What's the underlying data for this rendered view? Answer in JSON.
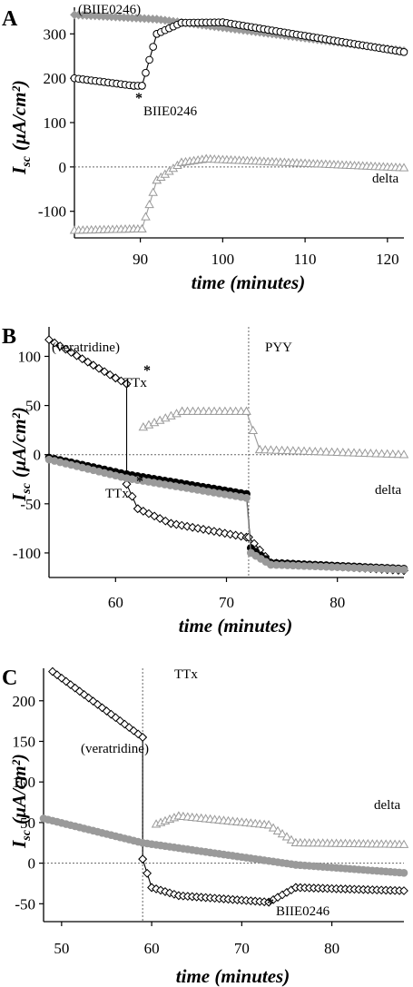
{
  "chart_data": [
    {
      "panel": "A",
      "type": "scatter",
      "xlabel": "time  (minutes)",
      "ylabel_main": "I",
      "ylabel_sub": "sc",
      "ylabel_units": "(µA/cm²)",
      "xlim": [
        82,
        122
      ],
      "ylim": [
        -160,
        360
      ],
      "xticks": [
        90,
        100,
        110,
        120
      ],
      "yticks": [
        -100,
        0,
        100,
        200,
        300
      ],
      "annotations": {
        "control": "(BIIE0246)",
        "drug": "BIIE0246",
        "delta": "delta",
        "star": "*"
      },
      "series": [
        {
          "marker": "diamond",
          "color": "#9a9a9a",
          "filled": true,
          "segments": [
            {
              "x0": 82,
              "x1": 92,
              "y0": 343,
              "y1": 333
            },
            {
              "x0": 92,
              "x1": 122,
              "y0": 333,
              "y1": 262
            }
          ]
        },
        {
          "marker": "circle",
          "color": "#000000",
          "filled": false,
          "segments": [
            {
              "x0": 82,
              "x1": 89.2,
              "y0": 200,
              "y1": 183
            },
            {
              "x0": 89.2,
              "x1": 90.2,
              "y0": 183,
              "y1": 183
            },
            {
              "x0": 90.2,
              "x1": 92,
              "y0": 183,
              "y1": 300
            },
            {
              "x0": 92,
              "x1": 95,
              "y0": 300,
              "y1": 325
            },
            {
              "x0": 95,
              "x1": 100,
              "y0": 325,
              "y1": 326
            },
            {
              "x0": 100,
              "x1": 122,
              "y0": 326,
              "y1": 259
            }
          ]
        },
        {
          "marker": "triangle",
          "color": "#9a9a9a",
          "filled": false,
          "segments": [
            {
              "x0": 82,
              "x1": 89.2,
              "y0": -143,
              "y1": -140
            },
            {
              "x0": 89.2,
              "x1": 90.2,
              "y0": -140,
              "y1": -140
            },
            {
              "x0": 90.2,
              "x1": 92,
              "y0": -140,
              "y1": -30
            },
            {
              "x0": 92,
              "x1": 95,
              "y0": -30,
              "y1": 10
            },
            {
              "x0": 95,
              "x1": 98,
              "y0": 10,
              "y1": 18
            },
            {
              "x0": 98,
              "x1": 122,
              "y0": 18,
              "y1": -2
            }
          ]
        }
      ]
    },
    {
      "panel": "B",
      "type": "scatter",
      "xlabel": "time  (minutes)",
      "ylabel_main": "I",
      "ylabel_sub": "sc",
      "ylabel_units": "(µA/cm²)",
      "xlim": [
        54,
        86
      ],
      "ylim": [
        -125,
        130
      ],
      "xticks": [
        60,
        70,
        80
      ],
      "yticks": [
        -100,
        -50,
        0,
        50,
        100
      ],
      "annotations": {
        "control": "(veratridine)",
        "drug1": "TTx",
        "drug1b": "TTx",
        "drug2": "PYY",
        "delta": "delta",
        "star": "*"
      },
      "series": [
        {
          "marker": "diamond",
          "color": "#000000",
          "filled": false,
          "segments": [
            {
              "x0": 54,
              "x1": 60,
              "y0": 117,
              "y1": 78
            },
            {
              "x0": 60,
              "x1": 61,
              "y0": 78,
              "y1": 72
            },
            {
              "x0": 61,
              "x1": 61,
              "y0": 72,
              "y1": -30
            },
            {
              "x0": 61,
              "x1": 62,
              "y0": -30,
              "y1": -55
            },
            {
              "x0": 62,
              "x1": 65,
              "y0": -55,
              "y1": -70
            },
            {
              "x0": 65,
              "x1": 71.8,
              "y0": -70,
              "y1": -84
            },
            {
              "x0": 71.8,
              "x1": 72,
              "y0": -84,
              "y1": -84
            },
            {
              "x0": 72,
              "x1": 74,
              "y0": -84,
              "y1": -110
            },
            {
              "x0": 74,
              "x1": 86,
              "y0": -110,
              "y1": -118
            }
          ]
        },
        {
          "marker": "circle",
          "color": "#000000",
          "filled": true,
          "segments": [
            {
              "x0": 54,
              "x1": 61,
              "y0": -3,
              "y1": -20
            },
            {
              "x0": 61,
              "x1": 71.8,
              "y0": -20,
              "y1": -40
            },
            {
              "x0": 71.8,
              "x1": 72.2,
              "y0": -40,
              "y1": -95
            },
            {
              "x0": 72.2,
              "x1": 74,
              "y0": -95,
              "y1": -110
            },
            {
              "x0": 74,
              "x1": 86,
              "y0": -110,
              "y1": -116
            }
          ]
        },
        {
          "marker": "circle",
          "color": "#9a9a9a",
          "filled": true,
          "segments": [
            {
              "x0": 54,
              "x1": 61,
              "y0": -5,
              "y1": -24
            },
            {
              "x0": 61,
              "x1": 71.8,
              "y0": -24,
              "y1": -44
            },
            {
              "x0": 71.8,
              "x1": 72.2,
              "y0": -44,
              "y1": -100
            },
            {
              "x0": 72.2,
              "x1": 74,
              "y0": -100,
              "y1": -112
            },
            {
              "x0": 74,
              "x1": 86,
              "y0": -112,
              "y1": -117
            }
          ]
        },
        {
          "marker": "triangle",
          "color": "#9a9a9a",
          "filled": false,
          "segments": [
            {
              "x0": 62.5,
              "x1": 66,
              "y0": 28,
              "y1": 44
            },
            {
              "x0": 66,
              "x1": 71.8,
              "y0": 44,
              "y1": 44
            },
            {
              "x0": 71.8,
              "x1": 73,
              "y0": 44,
              "y1": 5
            },
            {
              "x0": 73,
              "x1": 86,
              "y0": 5,
              "y1": 0
            }
          ]
        }
      ]
    },
    {
      "panel": "C",
      "type": "scatter",
      "xlabel": "time  (minutes)",
      "ylabel_main": "I",
      "ylabel_sub": "sc",
      "ylabel_units": "(µA/cm²)",
      "xlim": [
        48,
        88
      ],
      "ylim": [
        -72,
        240
      ],
      "xticks": [
        50,
        60,
        70,
        80
      ],
      "yticks": [
        -50,
        0,
        50,
        100,
        150,
        200
      ],
      "annotations": {
        "control": "(veratridine)",
        "drug1": "TTx",
        "drug2": "BIIE0246",
        "delta": "delta",
        "star": "*"
      },
      "series": [
        {
          "marker": "diamond",
          "color": "#000000",
          "filled": false,
          "segments": [
            {
              "x0": 49,
              "x1": 59,
              "y0": 236,
              "y1": 155
            },
            {
              "x0": 59,
              "x1": 59,
              "y0": 155,
              "y1": 5
            },
            {
              "x0": 59,
              "x1": 60,
              "y0": 5,
              "y1": -30
            },
            {
              "x0": 60,
              "x1": 63,
              "y0": -30,
              "y1": -40
            },
            {
              "x0": 63,
              "x1": 73,
              "y0": -40,
              "y1": -48
            },
            {
              "x0": 73,
              "x1": 76,
              "y0": -48,
              "y1": -30
            },
            {
              "x0": 76,
              "x1": 88,
              "y0": -30,
              "y1": -34
            }
          ]
        },
        {
          "marker": "circle",
          "color": "#9a9a9a",
          "filled": true,
          "segments": [
            {
              "x0": 48,
              "x1": 59,
              "y0": 55,
              "y1": 25
            },
            {
              "x0": 59,
              "x1": 76,
              "y0": 25,
              "y1": -2
            },
            {
              "x0": 76,
              "x1": 88,
              "y0": -2,
              "y1": -12
            }
          ]
        },
        {
          "marker": "triangle",
          "color": "#9a9a9a",
          "filled": false,
          "segments": [
            {
              "x0": 60.5,
              "x1": 63,
              "y0": 48,
              "y1": 58
            },
            {
              "x0": 63,
              "x1": 73,
              "y0": 58,
              "y1": 47
            },
            {
              "x0": 73,
              "x1": 76,
              "y0": 47,
              "y1": 25
            },
            {
              "x0": 76,
              "x1": 88,
              "y0": 25,
              "y1": 23
            }
          ]
        }
      ]
    }
  ]
}
